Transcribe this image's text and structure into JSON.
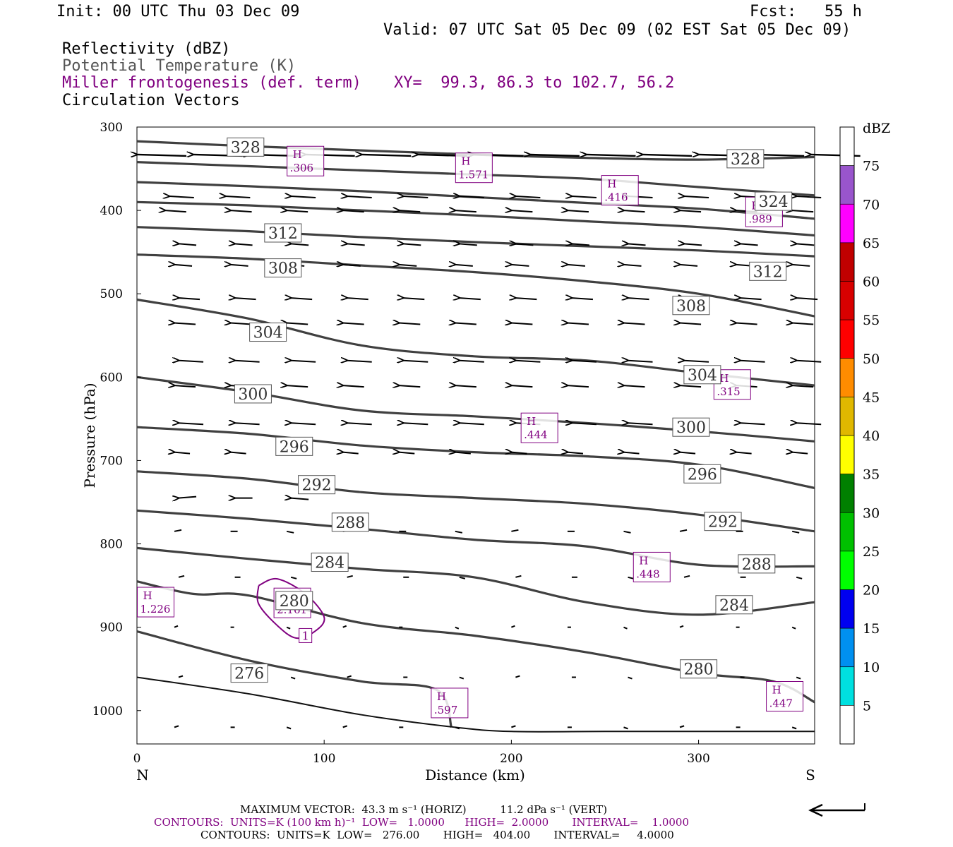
{
  "header": {
    "init": "Init: 00 UTC Thu 03 Dec 09",
    "fcst": "Fcst:   55 h",
    "valid": "Valid: 07 UTC Sat 05 Dec 09 (02 EST Sat 05 Dec 09)"
  },
  "fields": {
    "reflectivity": "Reflectivity (dBZ)",
    "theta": "Potential Temperature (K)",
    "miller": "Miller frontogenesis (def. term)",
    "xy": "XY=  99.3, 86.3 to 102.7, 56.2",
    "vectors": "Circulation Vectors"
  },
  "colorbar": {
    "title": "dBZ",
    "levels": [
      "5",
      "10",
      "15",
      "20",
      "25",
      "30",
      "35",
      "40",
      "45",
      "50",
      "55",
      "60",
      "65",
      "70",
      "75"
    ],
    "colors": [
      "#ffffff",
      "#00e0e0",
      "#0090f0",
      "#0000f0",
      "#00ff00",
      "#00c000",
      "#008000",
      "#ffff00",
      "#e0b800",
      "#ff8c00",
      "#ff0000",
      "#d80000",
      "#c00000",
      "#ff00ff",
      "#9955cc",
      "#ffffff"
    ]
  },
  "footer": {
    "maxvec": "MAXIMUM VECTOR:  43.3 m s⁻¹ (HORIZ)          11.2 dPa s⁻¹ (VERT)",
    "contours_miller": "CONTOURS:  UNITS=K (100 km h)⁻¹  LOW=   1.0000      HIGH=  2.0000       INTERVAL=    1.0000",
    "contours_theta": "CONTOURS:  UNITS=K  LOW=   276.00       HIGH=   404.00       INTERVAL=     4.0000"
  },
  "chart_data": {
    "type": "line",
    "title": "",
    "xlabel": "Distance (km)",
    "ylabel": "Pressure (hPa)",
    "xlim": [
      0,
      362
    ],
    "ylim": [
      1040,
      300
    ],
    "x_ticks": [
      "0",
      "100",
      "200",
      "300"
    ],
    "y_ticks": [
      "300",
      "400",
      "500",
      "600",
      "700",
      "800",
      "900",
      "1000"
    ],
    "x_end_labels": {
      "left": "N",
      "right": "S"
    },
    "theta_contours": [
      {
        "name": "328",
        "x": [
          0,
          60,
          120,
          180,
          240,
          300,
          362
        ],
        "p": [
          317,
          323,
          328,
          333,
          337,
          339,
          336
        ],
        "labels": [
          [
            58,
            324
          ],
          [
            325,
            338
          ]
        ]
      },
      {
        "name": "324",
        "x": [
          0,
          60,
          120,
          180,
          240,
          300,
          362
        ],
        "p": [
          342,
          347,
          352,
          357,
          362,
          372,
          382
        ],
        "labels": [
          [
            340,
            389
          ]
        ]
      },
      {
        "name": "320",
        "x": [
          0,
          60,
          120,
          180,
          240,
          300,
          362
        ],
        "p": [
          366,
          371,
          377,
          384,
          391,
          398,
          410
        ],
        "labels": []
      },
      {
        "name": "316",
        "x": [
          0,
          60,
          120,
          180,
          240,
          300,
          362
        ],
        "p": [
          390,
          394,
          400,
          406,
          413,
          420,
          430
        ],
        "labels": []
      },
      {
        "name": "312",
        "x": [
          0,
          60,
          120,
          180,
          240,
          300,
          362
        ],
        "p": [
          420,
          425,
          432,
          438,
          443,
          448,
          455
        ],
        "labels": [
          [
            78,
            427
          ],
          [
            337,
            473
          ]
        ]
      },
      {
        "name": "308",
        "x": [
          0,
          60,
          120,
          180,
          240,
          300,
          362
        ],
        "p": [
          453,
          458,
          466,
          474,
          485,
          500,
          527
        ],
        "labels": [
          [
            78,
            469
          ],
          [
            296,
            514
          ]
        ]
      },
      {
        "name": "304",
        "x": [
          0,
          60,
          120,
          180,
          240,
          300,
          362
        ],
        "p": [
          507,
          530,
          562,
          575,
          580,
          595,
          610
        ],
        "labels": [
          [
            70,
            546
          ],
          [
            302,
            597
          ]
        ]
      },
      {
        "name": "300",
        "x": [
          0,
          60,
          120,
          180,
          240,
          300,
          362
        ],
        "p": [
          600,
          618,
          640,
          647,
          655,
          665,
          677
        ],
        "labels": [
          [
            62,
            620
          ],
          [
            296,
            660
          ]
        ]
      },
      {
        "name": "296",
        "x": [
          0,
          60,
          120,
          180,
          240,
          300,
          362
        ],
        "p": [
          660,
          668,
          682,
          690,
          695,
          705,
          733
        ],
        "labels": [
          [
            84,
            683
          ],
          [
            302,
            716
          ]
        ]
      },
      {
        "name": "292",
        "x": [
          0,
          60,
          120,
          180,
          240,
          300,
          362
        ],
        "p": [
          713,
          722,
          738,
          745,
          752,
          765,
          785
        ],
        "labels": [
          [
            96,
            729
          ],
          [
            313,
            773
          ]
        ]
      },
      {
        "name": "288",
        "x": [
          0,
          60,
          120,
          180,
          240,
          300,
          362
        ],
        "p": [
          760,
          770,
          782,
          795,
          803,
          825,
          827
        ],
        "labels": [
          [
            114,
            774
          ],
          [
            331,
            824
          ]
        ]
      },
      {
        "name": "284",
        "x": [
          0,
          60,
          120,
          180,
          240,
          300,
          362
        ],
        "p": [
          805,
          818,
          830,
          840,
          870,
          885,
          870
        ],
        "labels": [
          [
            103,
            822
          ],
          [
            319,
            873
          ]
        ]
      },
      {
        "name": "280",
        "x": [
          0,
          30,
          60,
          120,
          180,
          240,
          300,
          340,
          362
        ],
        "p": [
          845,
          860,
          862,
          895,
          910,
          930,
          955,
          965,
          990
        ],
        "labels": [
          [
            84,
            868
          ],
          [
            300,
            950
          ]
        ]
      },
      {
        "name": "276",
        "x": [
          0,
          60,
          120,
          160,
          168
        ],
        "p": [
          905,
          940,
          965,
          975,
          1020
        ],
        "labels": [
          [
            60,
            955
          ]
        ]
      },
      {
        "name": "272",
        "x": [
          0,
          60,
          120,
          170,
          200,
          250,
          300,
          362
        ],
        "p": [
          960,
          980,
          1005,
          1020,
          1025,
          1025,
          1025,
          1025
        ],
        "labels": []
      }
    ],
    "frontogenesis_maxima": [
      {
        "label": "H",
        "value": ".306",
        "x": 90,
        "p": 340
      },
      {
        "label": "H",
        "value": "1.571",
        "x": 180,
        "p": 348
      },
      {
        "label": "H",
        "value": ".416",
        "x": 258,
        "p": 375
      },
      {
        "label": "H",
        "value": ".989",
        "x": 335,
        "p": 401
      },
      {
        "label": "H",
        "value": ".315",
        "x": 318,
        "p": 608
      },
      {
        "label": "H",
        "value": ".444",
        "x": 215,
        "p": 660
      },
      {
        "label": "H",
        "value": ".448",
        "x": 275,
        "p": 827
      },
      {
        "label": "H",
        "value": "1.226",
        "x": 10,
        "p": 869
      },
      {
        "label": "H",
        "value": "2.161",
        "x": 83,
        "p": 870
      },
      {
        "label": "H",
        "value": ".597",
        "x": 167,
        "p": 990
      },
      {
        "label": "H",
        "value": ".447",
        "x": 346,
        "p": 982
      }
    ],
    "frontogenesis_contour": {
      "value": "1",
      "label_x": 90,
      "label_p": 910
    }
  }
}
